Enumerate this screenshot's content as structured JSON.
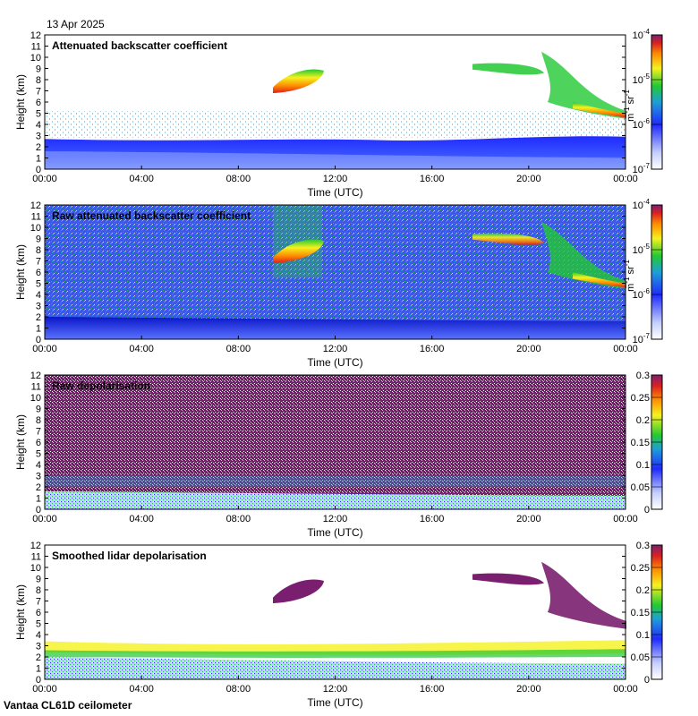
{
  "date_label": "13 Apr 2025",
  "instrument_label": "Vantaa CL61D ceilometer",
  "colors": {
    "white": "#ffffff",
    "light_blue": "#b8c7ff",
    "blue": "#1f2bff",
    "dark_blue": "#0a17c8",
    "green": "#22c833",
    "yellow": "#f5f21e",
    "orange": "#ff8a00",
    "red": "#d92020",
    "purple": "#7a1f6f"
  },
  "chart_data": [
    {
      "type": "heatmap",
      "title": "Attenuated backscatter coefficient",
      "xlabel": "Time (UTC)",
      "ylabel": "Height (km)",
      "x_ticks": [
        "00:00",
        "04:00",
        "08:00",
        "12:00",
        "16:00",
        "20:00",
        "00:00"
      ],
      "y_ticks": [
        "0",
        "1",
        "2",
        "3",
        "4",
        "5",
        "6",
        "7",
        "8",
        "9",
        "10",
        "11",
        "12"
      ],
      "ylim": [
        0,
        12
      ],
      "colorbar": {
        "scale": "log",
        "ticks": [
          "10-7",
          "10-6",
          "10-5",
          "10-4"
        ],
        "tick_labels": [
          {
            "base": "10",
            "exp": "-7"
          },
          {
            "base": "10",
            "exp": "-6"
          },
          {
            "base": "10",
            "exp": "-5"
          },
          {
            "base": "10",
            "exp": "-4"
          }
        ],
        "unit": {
          "m": "m",
          "m_exp": "-1",
          "sr": "sr",
          "sr_exp": "-1"
        },
        "range": [
          1e-07,
          0.0001
        ]
      }
    },
    {
      "type": "heatmap",
      "title": "Raw attenuated backscatter coefficient",
      "xlabel": "Time (UTC)",
      "ylabel": "Height (km)",
      "x_ticks": [
        "00:00",
        "04:00",
        "08:00",
        "12:00",
        "16:00",
        "20:00",
        "00:00"
      ],
      "y_ticks": [
        "0",
        "1",
        "2",
        "3",
        "4",
        "5",
        "6",
        "7",
        "8",
        "9",
        "10",
        "11",
        "12"
      ],
      "ylim": [
        0,
        12
      ],
      "colorbar": {
        "scale": "log",
        "ticks": [
          "10-7",
          "10-6",
          "10-5",
          "10-4"
        ],
        "tick_labels": [
          {
            "base": "10",
            "exp": "-7"
          },
          {
            "base": "10",
            "exp": "-6"
          },
          {
            "base": "10",
            "exp": "-5"
          },
          {
            "base": "10",
            "exp": "-4"
          }
        ],
        "unit": {
          "m": "m",
          "m_exp": "-1",
          "sr": "sr",
          "sr_exp": "-1"
        },
        "range": [
          1e-07,
          0.0001
        ]
      }
    },
    {
      "type": "heatmap",
      "title": "Raw depolarisation",
      "xlabel": "Time (UTC)",
      "ylabel": "Height (km)",
      "x_ticks": [
        "00:00",
        "04:00",
        "08:00",
        "12:00",
        "16:00",
        "20:00",
        "00:00"
      ],
      "y_ticks": [
        "0",
        "1",
        "2",
        "3",
        "4",
        "5",
        "6",
        "7",
        "8",
        "9",
        "10",
        "11",
        "12"
      ],
      "ylim": [
        0,
        12
      ],
      "colorbar": {
        "scale": "linear",
        "ticks": [
          "0",
          "0.05",
          "0.1",
          "0.15",
          "0.2",
          "0.25",
          "0.3"
        ],
        "range": [
          0,
          0.3
        ]
      }
    },
    {
      "type": "heatmap",
      "title": "Smoothed lidar depolarisation",
      "xlabel": "Time (UTC)",
      "ylabel": "Height (km)",
      "x_ticks": [
        "00:00",
        "04:00",
        "08:00",
        "12:00",
        "16:00",
        "20:00",
        "00:00"
      ],
      "y_ticks": [
        "0",
        "1",
        "2",
        "3",
        "4",
        "5",
        "6",
        "7",
        "8",
        "9",
        "10",
        "11",
        "12"
      ],
      "ylim": [
        0,
        12
      ],
      "colorbar": {
        "scale": "linear",
        "ticks": [
          "0",
          "0.05",
          "0.1",
          "0.15",
          "0.2",
          "0.25",
          "0.3"
        ],
        "range": [
          0,
          0.3
        ]
      }
    }
  ]
}
